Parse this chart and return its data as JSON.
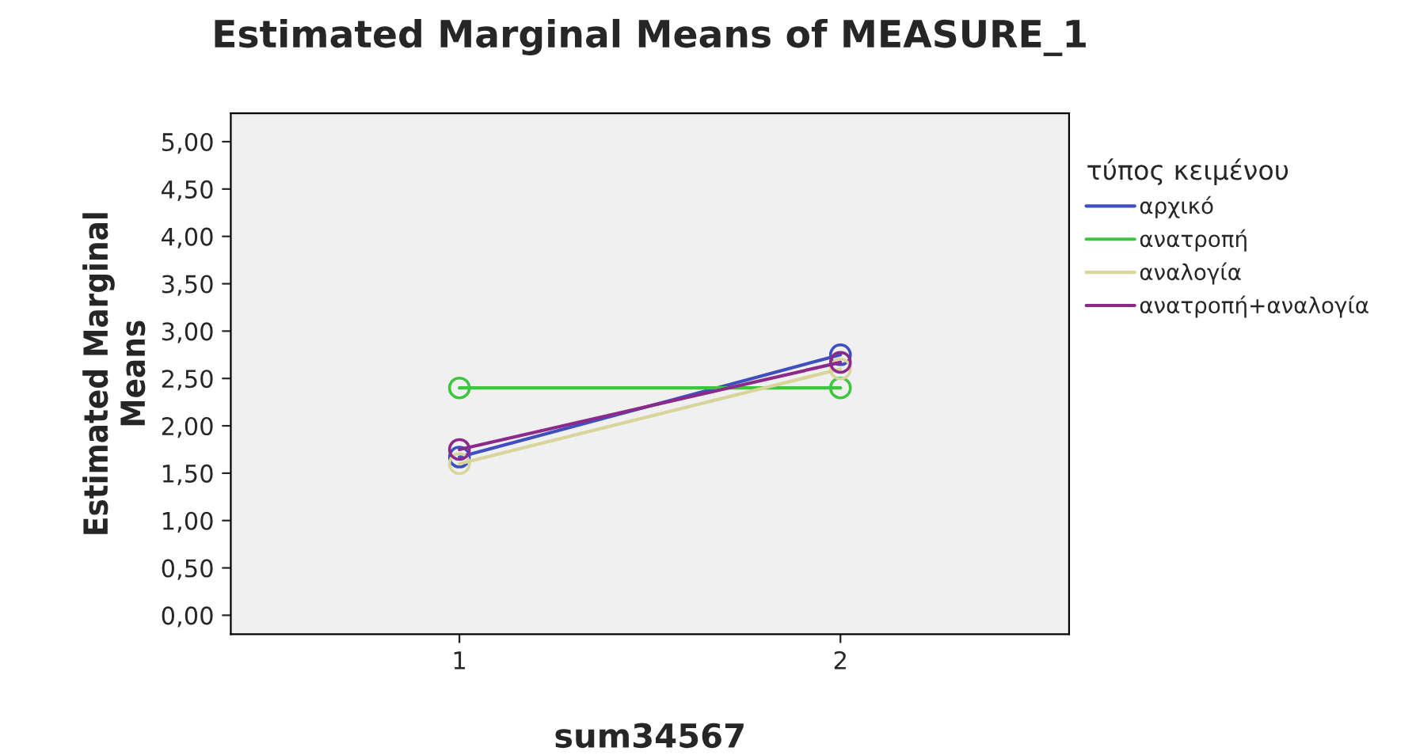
{
  "chart_data": {
    "type": "line",
    "title": "Estimated Marginal Means of MEASURE_1",
    "xlabel": "sum34567",
    "ylabel": "Estimated Marginal\nMeans",
    "legend_title": "τύπος κειμένου",
    "categories": [
      "1",
      "2"
    ],
    "series": [
      {
        "name": "αρχικό",
        "color": "#3e4fc0",
        "values": [
          1.67,
          2.75
        ]
      },
      {
        "name": "ανατροπή",
        "color": "#3ec63e",
        "values": [
          2.4,
          2.4
        ]
      },
      {
        "name": "αναλογία",
        "color": "#d8d49a",
        "values": [
          1.6,
          2.6
        ]
      },
      {
        "name": "ανατροπή+αναλογία",
        "color": "#8c2a8c",
        "values": [
          1.75,
          2.67
        ]
      }
    ],
    "ylim": [
      -0.2,
      5.3
    ],
    "yticks": [
      {
        "value": 0,
        "label": "0,00"
      },
      {
        "value": 0.5,
        "label": "0,50"
      },
      {
        "value": 1,
        "label": "1,00"
      },
      {
        "value": 1.5,
        "label": "1,50"
      },
      {
        "value": 2,
        "label": "2,00"
      },
      {
        "value": 2.5,
        "label": "2,50"
      },
      {
        "value": 3,
        "label": "3,00"
      },
      {
        "value": 3.5,
        "label": "3,50"
      },
      {
        "value": 4,
        "label": "4,00"
      },
      {
        "value": 4.5,
        "label": "4,50"
      },
      {
        "value": 5,
        "label": "5,00"
      }
    ],
    "grid": false,
    "legend": "right",
    "marker": "circle",
    "line_style": "solid"
  }
}
